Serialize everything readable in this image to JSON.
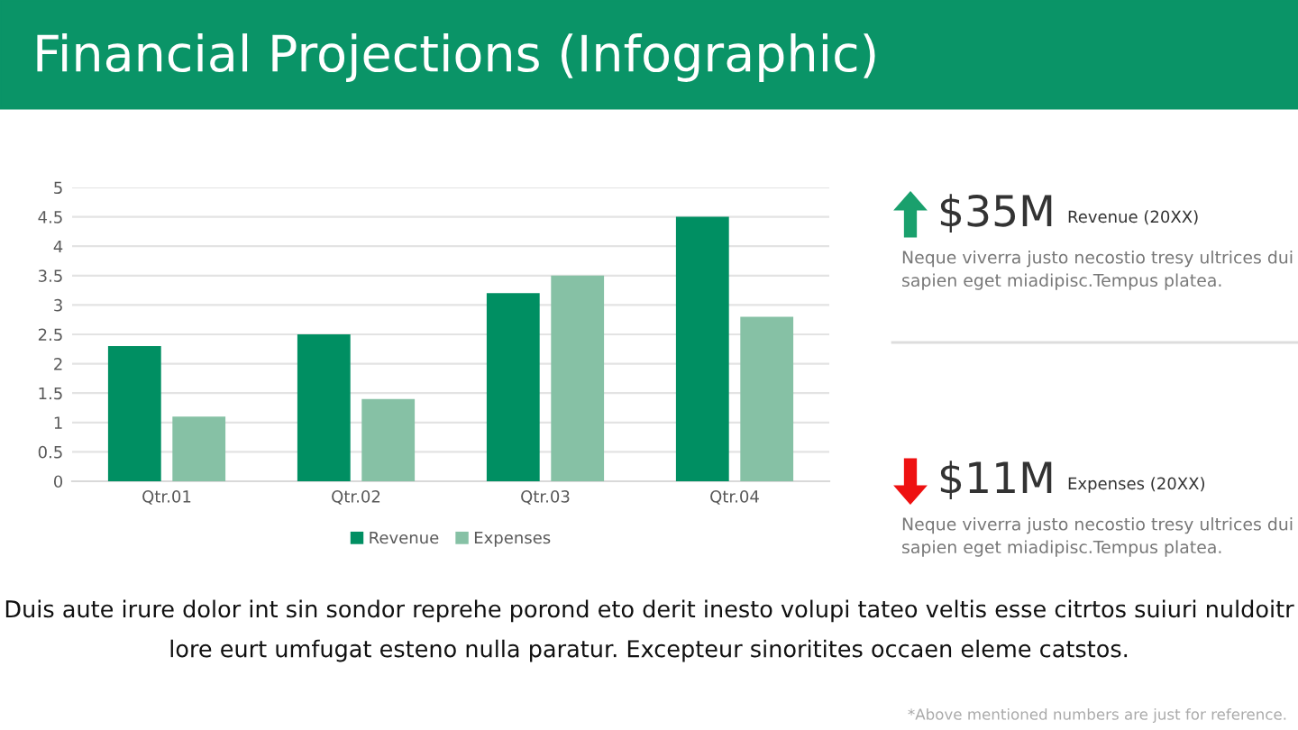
{
  "chart_data": [
    {
      "type": "bar",
      "title": "Financial Projections (Infographic)",
      "categories": [
        "Qtr.01",
        "Qtr.02",
        "Qtr.03",
        "Qtr.04"
      ],
      "series": [
        {
          "name": "Revenue",
          "color": "#008f62",
          "values": [
            2.3,
            2.5,
            3.2,
            4.5
          ]
        },
        {
          "name": "Expenses",
          "color": "#86c1a5",
          "values": [
            1.1,
            1.4,
            3.5,
            2.8
          ]
        }
      ],
      "ylim": [
        0,
        5
      ],
      "yticks": [
        0,
        0.5,
        1,
        1.5,
        2,
        2.5,
        3,
        3.5,
        4,
        4.5,
        5
      ],
      "grid": "y",
      "legend": "bottom",
      "annotations": [
        "Duis aute irure dolor int sin sondor reprehe porond eto derit inesto volupi tateo veltis esse citrtos suiuri nuldoitr lore eurt umfugat esteno nulla paratur. Excepteur sinoritites occaen eleme catstos.",
        "*Above mentioned numbers are just for reference."
      ]
    },
    {
      "type": "other",
      "annotations": [
        "$35M",
        "Revenue (20XX)",
        "Neque viverra justo necostio tresy ultrices dui sapien eget miadipisc.Tempus platea.",
        "$11M",
        "Expenses (20XX)",
        "Neque viverra justo necostio tresy ultrices dui sapien eget miadipisc.Tempus platea."
      ]
    }
  ]
}
